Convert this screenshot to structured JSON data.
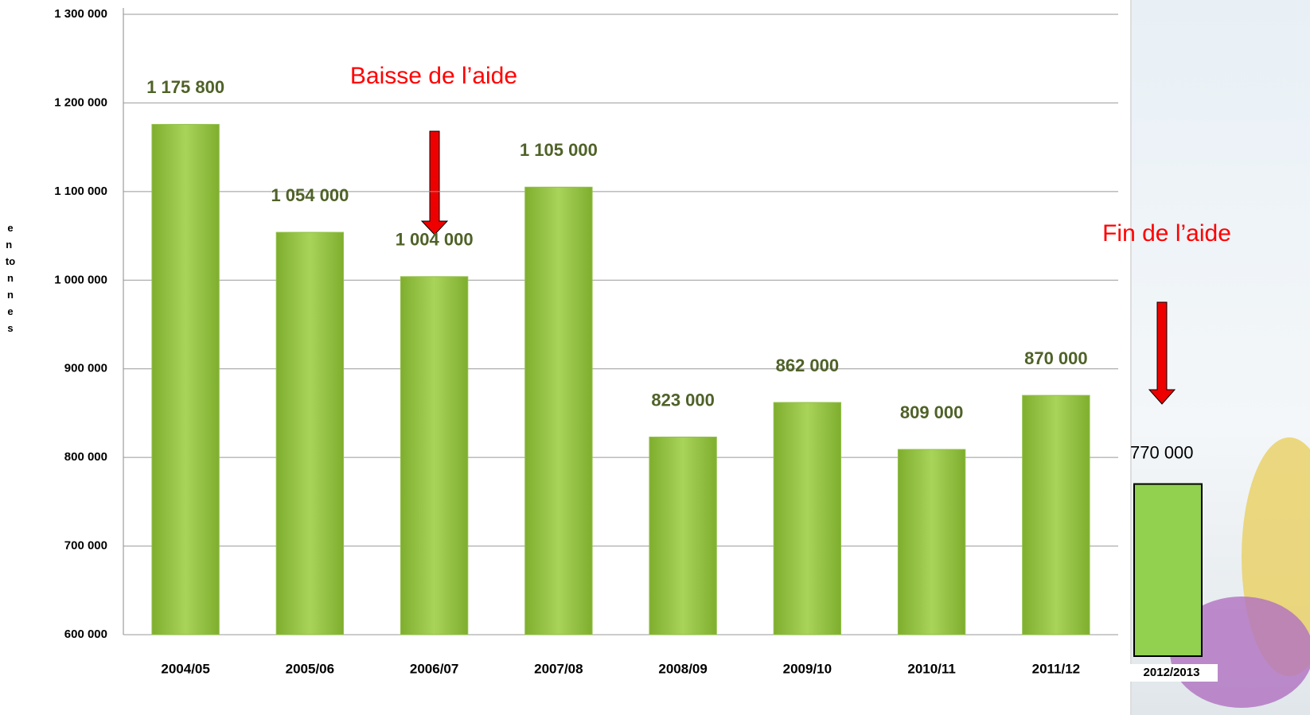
{
  "chart_data": {
    "type": "bar",
    "y_label": "en tonnes",
    "categories": [
      "2004/05",
      "2005/06",
      "2006/07",
      "2007/08",
      "2008/09",
      "2009/10",
      "2010/11",
      "2011/12"
    ],
    "values": [
      1175800,
      1054000,
      1004000,
      1105000,
      823000,
      862000,
      809000,
      870000
    ],
    "value_labels": [
      "1 175 800",
      "1 054 000",
      "1 004 000",
      "1 105 000",
      "823 000",
      "862 000",
      "809 000",
      "870 000"
    ],
    "color": "#92c04a",
    "ylim": [
      600000,
      1300000
    ],
    "yticks": [
      {
        "value": 600000,
        "label": "600 000"
      },
      {
        "value": 700000,
        "label": "700 000"
      },
      {
        "value": 800000,
        "label": "800 000"
      },
      {
        "value": 900000,
        "label": "900 000"
      },
      {
        "value": 1000000,
        "label": "1 000 000"
      },
      {
        "value": 1100000,
        "label": "1 100 000"
      },
      {
        "value": 1200000,
        "label": "1 200 000"
      },
      {
        "value": 1300000,
        "label": "1 300 000"
      }
    ],
    "grid": true,
    "extra": {
      "category": "2012/2013",
      "value": 770000,
      "value_label": "770 000",
      "color": "#92d050"
    },
    "annotations": [
      "Baisse de l’aide",
      "Fin de l’aide"
    ]
  }
}
